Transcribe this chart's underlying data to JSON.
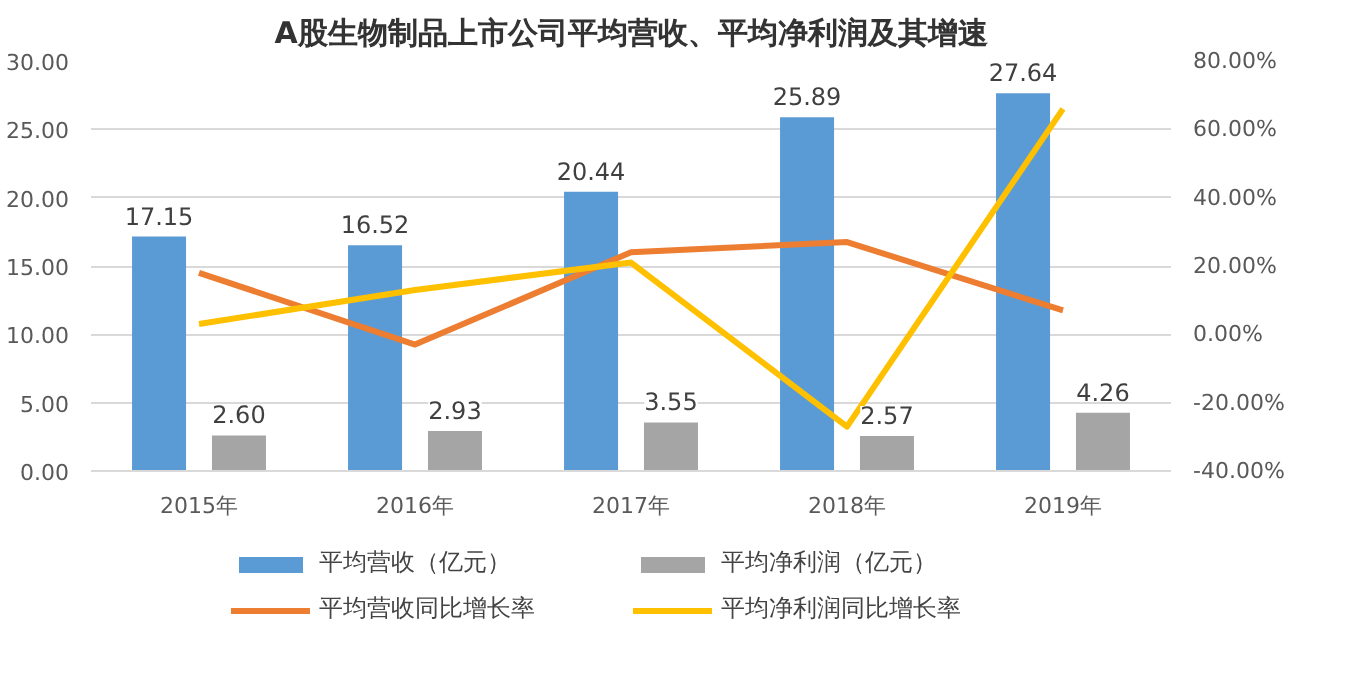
{
  "chart_data": {
    "type": "bar",
    "title": "A股生物制品上市公司平均营收、平均净利润及其增速",
    "categories": [
      "2015年",
      "2016年",
      "2017年",
      "2018年",
      "2019年"
    ],
    "series": [
      {
        "name": "平均营收（亿元）",
        "color": "#5b9bd5",
        "values": [
          17.15,
          16.52,
          20.44,
          25.89,
          27.64
        ],
        "value_labels": [
          "17.15",
          "16.52",
          "20.44",
          "25.89",
          "27.64"
        ]
      },
      {
        "name": "平均净利润（亿元）",
        "color": "#a5a5a5",
        "values": [
          2.6,
          2.93,
          3.55,
          2.57,
          4.26
        ],
        "value_labels": [
          "2.60",
          "2.93",
          "3.55",
          "2.57",
          "4.26"
        ]
      },
      {
        "name": "平均营收同比增长率",
        "type": "line",
        "axis": "y2",
        "color": "#ed7d31",
        "values": [
          18,
          -3,
          24,
          27,
          7
        ]
      },
      {
        "name": "平均净利润同比增长率",
        "type": "line",
        "axis": "y2",
        "color": "#ffc000",
        "values": [
          3,
          13,
          21,
          -27,
          66
        ]
      }
    ],
    "ylim": [
      0,
      30
    ],
    "yticks": [
      {
        "value": 0,
        "label": "0.00"
      },
      {
        "value": 5,
        "label": "5.00"
      },
      {
        "value": 10,
        "label": "10.00"
      },
      {
        "value": 15,
        "label": "15.00"
      },
      {
        "value": 20,
        "label": "20.00"
      },
      {
        "value": 25,
        "label": "25.00"
      },
      {
        "value": 30,
        "label": "30.00"
      }
    ],
    "y2lim": [
      -40,
      80
    ],
    "y2ticks": [
      {
        "value": -40,
        "label": "-40.00%"
      },
      {
        "value": -20,
        "label": "-20.00%"
      },
      {
        "value": 0,
        "label": "0.00%"
      },
      {
        "value": 20,
        "label": "20.00%"
      },
      {
        "value": 40,
        "label": "40.00%"
      },
      {
        "value": 60,
        "label": "60.00%"
      },
      {
        "value": 80,
        "label": "80.00%"
      }
    ],
    "grid": "y",
    "legend": "bottom",
    "marker": "none",
    "line_style": "solid"
  }
}
